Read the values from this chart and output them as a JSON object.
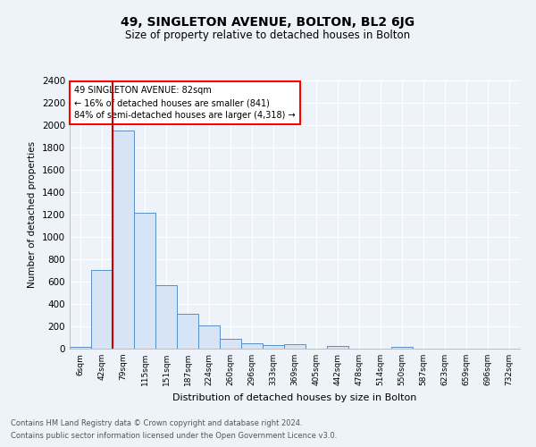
{
  "title": "49, SINGLETON AVENUE, BOLTON, BL2 6JG",
  "subtitle": "Size of property relative to detached houses in Bolton",
  "xlabel": "Distribution of detached houses by size in Bolton",
  "ylabel": "Number of detached properties",
  "footnote1": "Contains HM Land Registry data © Crown copyright and database right 2024.",
  "footnote2": "Contains public sector information licensed under the Open Government Licence v3.0.",
  "annotation_title": "49 SINGLETON AVENUE: 82sqm",
  "annotation_line1": "← 16% of detached houses are smaller (841)",
  "annotation_line2": "84% of semi-detached houses are larger (4,318) →",
  "bar_edge_color": "#5a8fc4",
  "bar_face_color": "#d6e4f5",
  "red_line_color": "#cc0000",
  "background_color": "#eef2f9",
  "grid_color": "#ffffff",
  "categories": [
    "6sqm",
    "42sqm",
    "79sqm",
    "115sqm",
    "151sqm",
    "187sqm",
    "224sqm",
    "260sqm",
    "296sqm",
    "333sqm",
    "369sqm",
    "405sqm",
    "442sqm",
    "478sqm",
    "514sqm",
    "550sqm",
    "587sqm",
    "623sqm",
    "659sqm",
    "696sqm",
    "732sqm"
  ],
  "values": [
    20,
    705,
    1955,
    1220,
    570,
    310,
    205,
    88,
    45,
    35,
    37,
    0,
    22,
    0,
    0,
    20,
    0,
    0,
    0,
    0,
    0
  ],
  "ylim": [
    0,
    2400
  ],
  "yticks": [
    0,
    200,
    400,
    600,
    800,
    1000,
    1200,
    1400,
    1600,
    1800,
    2000,
    2200,
    2400
  ],
  "red_line_xindex": 2
}
